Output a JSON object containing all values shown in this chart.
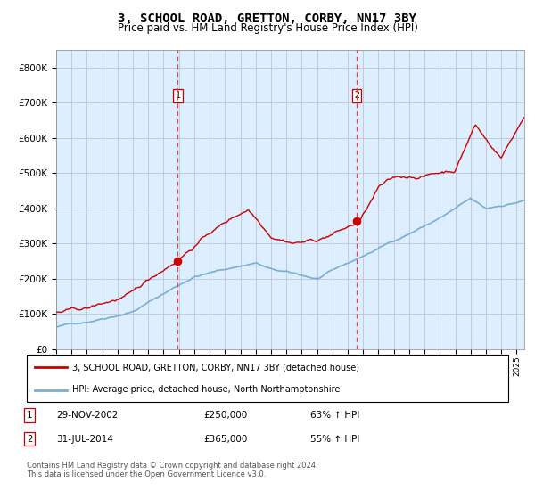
{
  "title": "3, SCHOOL ROAD, GRETTON, CORBY, NN17 3BY",
  "subtitle": "Price paid vs. HM Land Registry's House Price Index (HPI)",
  "legend_line1": "3, SCHOOL ROAD, GRETTON, CORBY, NN17 3BY (detached house)",
  "legend_line2": "HPI: Average price, detached house, North Northamptonshire",
  "sale1_label": "1",
  "sale1_date": "29-NOV-2002",
  "sale1_price": "£250,000",
  "sale1_hpi": "63% ↑ HPI",
  "sale1_year": 2002.92,
  "sale1_value": 250000,
  "sale2_label": "2",
  "sale2_date": "31-JUL-2014",
  "sale2_price": "£365,000",
  "sale2_hpi": "55% ↑ HPI",
  "sale2_year": 2014.58,
  "sale2_value": 365000,
  "red_line_color": "#cc0000",
  "blue_line_color": "#7aadd4",
  "shaded_color": "#ddeeff",
  "vline_color": "#ff3333",
  "dot_color": "#cc0000",
  "background_color": "#ffffff",
  "grid_color": "#bbbbcc",
  "title_fontsize": 10,
  "subtitle_fontsize": 8.5,
  "footer_text": "Contains HM Land Registry data © Crown copyright and database right 2024.\nThis data is licensed under the Open Government Licence v3.0.",
  "ylim": [
    0,
    850000
  ],
  "xlim_start": 1995.0,
  "xlim_end": 2025.5,
  "yticks": [
    0,
    100000,
    200000,
    300000,
    400000,
    500000,
    600000,
    700000,
    800000
  ]
}
